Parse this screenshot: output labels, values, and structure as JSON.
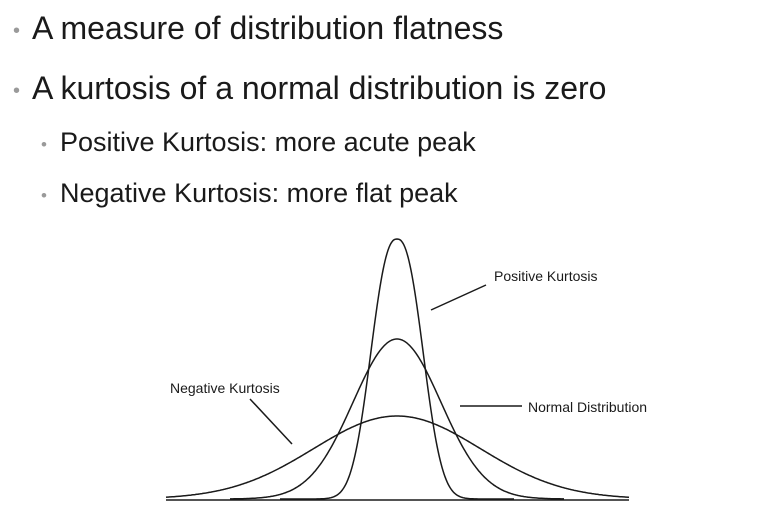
{
  "bullets": [
    {
      "level": 1,
      "text": "A measure of distribution flatness"
    },
    {
      "level": 1,
      "text": "A kurtosis of a normal distribution is zero"
    },
    {
      "level": 2,
      "text": "Positive Kurtosis: more acute peak"
    },
    {
      "level": 2,
      "text": "Negative Kurtosis: more flat peak"
    }
  ],
  "bullet_marker": "•",
  "diagram": {
    "curves": [
      {
        "name": "Positive Kurtosis",
        "shape": "tall narrow peak"
      },
      {
        "name": "Normal Distribution",
        "shape": "medium peak"
      },
      {
        "name": "Negative Kurtosis",
        "shape": "low flat peak"
      }
    ],
    "labels": {
      "positive": "Positive Kurtosis",
      "normal": "Normal Distribution",
      "negative": "Negative Kurtosis"
    }
  }
}
